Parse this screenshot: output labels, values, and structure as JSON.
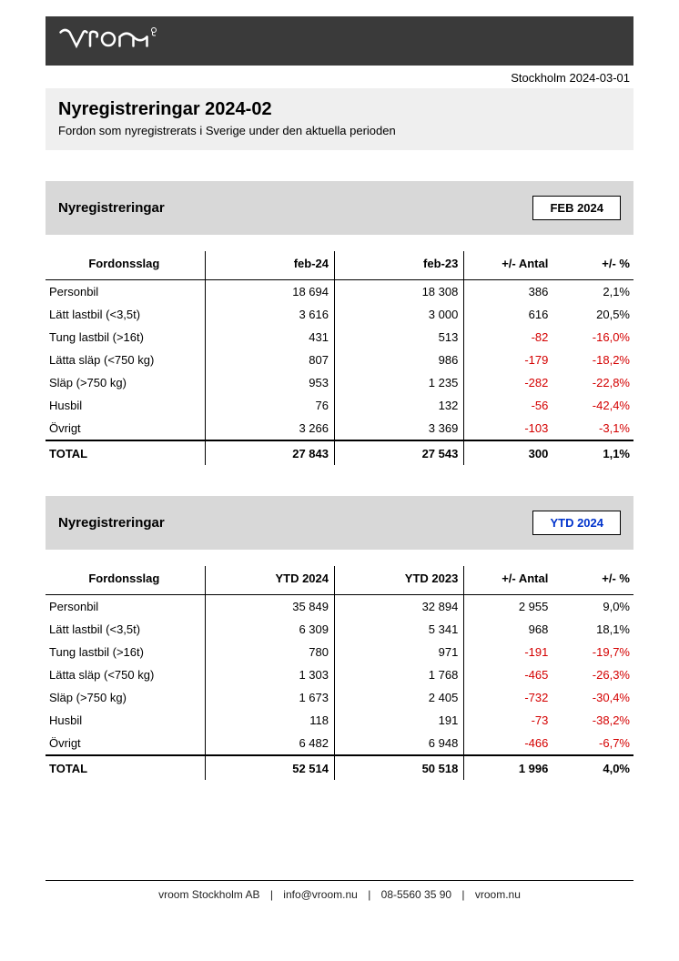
{
  "header": {
    "logo_text": "vroom®",
    "date_location": "Stockholm 2024-03-01",
    "title": "Nyregistreringar 2024-02",
    "subtitle": "Fordon som nyregistrerats i Sverige under den aktuella perioden"
  },
  "colors": {
    "top_bar_bg": "#3a3a3a",
    "title_block_bg": "#efefef",
    "section_head_bg": "#d8d8d8",
    "negative": "#d40000",
    "badge_blue": "#0033cc"
  },
  "tables": [
    {
      "section_title": "Nyregistreringar",
      "badge": "FEB 2024",
      "badge_style": "black",
      "columns": [
        "Fordonsslag",
        "feb-24",
        "feb-23",
        "+/- Antal",
        "+/- %"
      ],
      "rows": [
        {
          "cat": "Personbil",
          "a": "18 694",
          "b": "18 308",
          "d": "386",
          "p": "2,1%",
          "neg": false
        },
        {
          "cat": "Lätt lastbil (<3,5t)",
          "a": "3 616",
          "b": "3 000",
          "d": "616",
          "p": "20,5%",
          "neg": false
        },
        {
          "cat": "Tung lastbil (>16t)",
          "a": "431",
          "b": "513",
          "d": "-82",
          "p": "-16,0%",
          "neg": true
        },
        {
          "cat": "Lätta släp (<750 kg)",
          "a": "807",
          "b": "986",
          "d": "-179",
          "p": "-18,2%",
          "neg": true
        },
        {
          "cat": "Släp (>750 kg)",
          "a": "953",
          "b": "1 235",
          "d": "-282",
          "p": "-22,8%",
          "neg": true
        },
        {
          "cat": "Husbil",
          "a": "76",
          "b": "132",
          "d": "-56",
          "p": "-42,4%",
          "neg": true
        },
        {
          "cat": "Övrigt",
          "a": "3 266",
          "b": "3 369",
          "d": "-103",
          "p": "-3,1%",
          "neg": true
        }
      ],
      "total": {
        "cat": "TOTAL",
        "a": "27 843",
        "b": "27 543",
        "d": "300",
        "p": "1,1%",
        "neg": false
      }
    },
    {
      "section_title": "Nyregistreringar",
      "badge": "YTD 2024",
      "badge_style": "blue",
      "columns": [
        "Fordonsslag",
        "YTD 2024",
        "YTD 2023",
        "+/- Antal",
        "+/- %"
      ],
      "rows": [
        {
          "cat": "Personbil",
          "a": "35 849",
          "b": "32 894",
          "d": "2 955",
          "p": "9,0%",
          "neg": false
        },
        {
          "cat": "Lätt lastbil (<3,5t)",
          "a": "6 309",
          "b": "5 341",
          "d": "968",
          "p": "18,1%",
          "neg": false
        },
        {
          "cat": "Tung lastbil (>16t)",
          "a": "780",
          "b": "971",
          "d": "-191",
          "p": "-19,7%",
          "neg": true
        },
        {
          "cat": "Lätta släp (<750 kg)",
          "a": "1 303",
          "b": "1 768",
          "d": "-465",
          "p": "-26,3%",
          "neg": true
        },
        {
          "cat": "Släp (>750 kg)",
          "a": "1 673",
          "b": "2 405",
          "d": "-732",
          "p": "-30,4%",
          "neg": true
        },
        {
          "cat": "Husbil",
          "a": "118",
          "b": "191",
          "d": "-73",
          "p": "-38,2%",
          "neg": true
        },
        {
          "cat": "Övrigt",
          "a": "6 482",
          "b": "6 948",
          "d": "-466",
          "p": "-6,7%",
          "neg": true
        }
      ],
      "total": {
        "cat": "TOTAL",
        "a": "52 514",
        "b": "50 518",
        "d": "1 996",
        "p": "4,0%",
        "neg": false
      }
    }
  ],
  "footer": {
    "company": "vroom Stockholm AB",
    "email": "info@vroom.nu",
    "phone": "08-5560 35 90",
    "web": "vroom.nu"
  }
}
